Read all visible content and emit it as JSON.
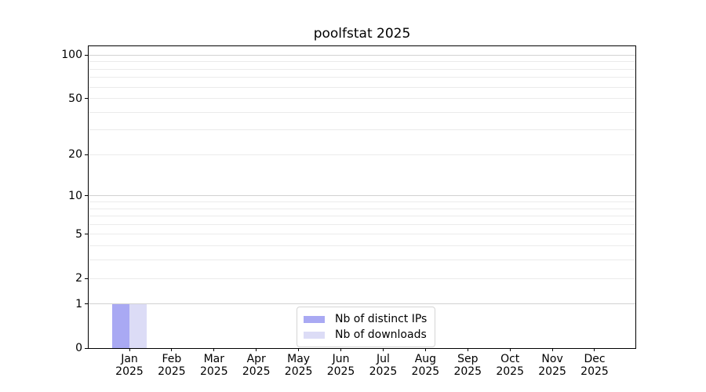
{
  "chart_data": {
    "type": "bar",
    "title": "poolfstat 2025",
    "categories": [
      "Jan 2025",
      "Feb 2025",
      "Mar 2025",
      "Apr 2025",
      "May 2025",
      "Jun 2025",
      "Jul 2025",
      "Aug 2025",
      "Sep 2025",
      "Oct 2025",
      "Nov 2025",
      "Dec 2025"
    ],
    "series": [
      {
        "name": "Nb of distinct IPs",
        "color": "#a9a9f3",
        "values": [
          1,
          0,
          0,
          0,
          0,
          0,
          0,
          0,
          0,
          0,
          0,
          0
        ]
      },
      {
        "name": "Nb of downloads",
        "color": "#dcdcf6",
        "values": [
          1,
          0,
          0,
          0,
          0,
          0,
          0,
          0,
          0,
          0,
          0,
          0
        ]
      }
    ],
    "xlabel": "",
    "ylabel": "",
    "yscale": "log1p",
    "ylim": [
      0,
      113
    ],
    "y_major_ticks": [
      0,
      1,
      2,
      5,
      10,
      20,
      50,
      100
    ],
    "y_major_gridlines": [
      1,
      10,
      100
    ],
    "y_minor_gridlines": [
      2,
      3,
      4,
      5,
      6,
      7,
      8,
      9,
      20,
      30,
      40,
      50,
      60,
      70,
      80,
      90
    ],
    "grid": "horizontal, major and minor",
    "legend_position": "lower center, inside axes"
  },
  "colors": {
    "background": "#ffffff",
    "spine": "#000000",
    "text": "#000000",
    "major_grid": "#d2d2d2",
    "minor_grid": "#ebebeb",
    "legend_border": "#d5d5d5",
    "bar_distinct_ips": "#a9a9f3",
    "bar_downloads": "#dcdcf6"
  }
}
